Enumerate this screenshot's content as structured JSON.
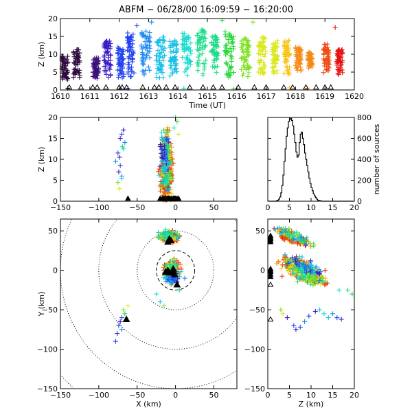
{
  "title": "ABFM − 06/28/00 16:09:59 − 16:20:00",
  "palette": {
    "rainbow": [
      "#2e0b3f",
      "#3d0f7a",
      "#3a1cc4",
      "#2142f2",
      "#1f8bf0",
      "#19bfe6",
      "#19dccd",
      "#1cdc8a",
      "#28d83a",
      "#7fe020",
      "#d9e81c",
      "#f7c419",
      "#f58a15",
      "#ee4a12",
      "#e51010"
    ],
    "station_color": "#000000",
    "ring_color": "#000000"
  },
  "chart_data": [
    {
      "id": "time-height",
      "type": "scatter",
      "xlabel": "Time (UT)",
      "ylabel": "Z (km)",
      "xlim": [
        1610,
        1620
      ],
      "ylim": [
        0,
        20
      ],
      "xticks": [
        "1610",
        "1611",
        "1612",
        "1613",
        "1614",
        "1615",
        "1616",
        "1617",
        "1618",
        "1619",
        "1620"
      ],
      "yticks": [
        "0",
        "5",
        "10",
        "15",
        "20"
      ],
      "marker": "plus",
      "color_by": "time",
      "flashes": [
        {
          "t": 1610.15,
          "w": 0.22,
          "zlo": 2.5,
          "zhi": 9.5
        },
        {
          "t": 1610.55,
          "w": 0.22,
          "zlo": 3.0,
          "zhi": 11.5
        },
        {
          "t": 1611.2,
          "w": 0.2,
          "zlo": 3.0,
          "zhi": 9.0
        },
        {
          "t": 1611.6,
          "w": 0.25,
          "zlo": 3.5,
          "zhi": 14.0
        },
        {
          "t": 1612.05,
          "w": 0.2,
          "zlo": 3.0,
          "zhi": 12.0
        },
        {
          "t": 1612.4,
          "w": 0.25,
          "zlo": 3.0,
          "zhi": 16.0
        },
        {
          "t": 1612.9,
          "w": 0.3,
          "zlo": 3.5,
          "zhi": 16.5
        },
        {
          "t": 1613.4,
          "w": 0.3,
          "zlo": 3.0,
          "zhi": 15.0
        },
        {
          "t": 1613.85,
          "w": 0.25,
          "zlo": 3.5,
          "zhi": 14.0
        },
        {
          "t": 1614.3,
          "w": 0.3,
          "zlo": 4.0,
          "zhi": 16.0
        },
        {
          "t": 1614.8,
          "w": 0.3,
          "zlo": 3.5,
          "zhi": 17.0
        },
        {
          "t": 1615.25,
          "w": 0.25,
          "zlo": 4.0,
          "zhi": 15.5
        },
        {
          "t": 1615.75,
          "w": 0.3,
          "zlo": 3.5,
          "zhi": 16.5
        },
        {
          "t": 1616.3,
          "w": 0.3,
          "zlo": 3.5,
          "zhi": 15.0
        },
        {
          "t": 1616.85,
          "w": 0.25,
          "zlo": 4.0,
          "zhi": 15.0
        },
        {
          "t": 1617.3,
          "w": 0.2,
          "zlo": 4.5,
          "zhi": 14.0
        },
        {
          "t": 1617.7,
          "w": 0.2,
          "zlo": 4.0,
          "zhi": 14.0
        },
        {
          "t": 1618.1,
          "w": 0.2,
          "zlo": 5.0,
          "zhi": 12.0
        },
        {
          "t": 1618.5,
          "w": 0.15,
          "zlo": 6.0,
          "zhi": 10.5
        },
        {
          "t": 1619.05,
          "w": 0.2,
          "zlo": 4.5,
          "zhi": 13.0
        },
        {
          "t": 1619.5,
          "w": 0.2,
          "zlo": 4.0,
          "zhi": 11.5
        }
      ],
      "scattered_points": [
        {
          "t": 1610.25,
          "z": 0.5
        },
        {
          "t": 1612.6,
          "z": 18.0
        },
        {
          "t": 1613.1,
          "z": 19.0
        },
        {
          "t": 1615.5,
          "z": 19.5
        },
        {
          "t": 1616.55,
          "z": 19.0
        },
        {
          "t": 1619.35,
          "z": 17.5
        },
        {
          "t": 1617.8,
          "z": 0.6
        },
        {
          "t": 1612.3,
          "z": 0.4
        },
        {
          "t": 1614.2,
          "z": 0.5
        },
        {
          "t": 1615.9,
          "z": 0.3
        },
        {
          "t": 1618.4,
          "z": 0.5
        }
      ],
      "ground_triangles_t": [
        1610.3,
        1610.7,
        1611.1,
        1611.25,
        1611.55,
        1612.0,
        1612.1,
        1612.25,
        1612.8,
        1613.2,
        1613.35,
        1613.6,
        1613.9,
        1614.4,
        1614.85,
        1615.2,
        1615.5,
        1616.05,
        1616.6,
        1617.0,
        1617.6,
        1617.9,
        1618.35,
        1618.7,
        1619.0,
        1619.2
      ]
    },
    {
      "id": "xz-projection",
      "type": "scatter",
      "xlabel": "",
      "ylabel": "Z (km)",
      "xlim": [
        -150,
        80
      ],
      "ylim": [
        0,
        20
      ],
      "xticks": [
        "−150",
        "−100",
        "−50",
        "0",
        "50"
      ],
      "yticks": [
        "0",
        "5",
        "10",
        "15",
        "20"
      ],
      "marker": "plus",
      "sources": [
        {
          "x": -12,
          "z": 8.0,
          "sx": 9,
          "sz": 4.5,
          "n": 500,
          "c": [
            11,
            14
          ]
        },
        {
          "x": -12,
          "z": 9.0,
          "sx": 10,
          "sz": 5.0,
          "n": 140,
          "c": [
            6,
            10
          ]
        },
        {
          "x": -14,
          "z": 10.0,
          "sx": 8,
          "sz": 4.5,
          "n": 60,
          "c": [
            2,
            5
          ]
        }
      ],
      "side_points": [
        {
          "x": -68,
          "z": 17.0,
          "c": 2
        },
        {
          "x": -70,
          "z": 16.0,
          "c": 3
        },
        {
          "x": -72,
          "z": 15.0,
          "c": 2
        },
        {
          "x": -66,
          "z": 14.0,
          "c": 4
        },
        {
          "x": -68,
          "z": 12.5,
          "c": 6
        },
        {
          "x": -75,
          "z": 11.5,
          "c": 3
        },
        {
          "x": -73,
          "z": 10.5,
          "c": 2
        },
        {
          "x": -78,
          "z": 9.5,
          "c": 4
        },
        {
          "x": -72,
          "z": 8.5,
          "c": 3
        },
        {
          "x": -74,
          "z": 7.0,
          "c": 2
        },
        {
          "x": -70,
          "z": 6.0,
          "c": 4
        },
        {
          "x": -75,
          "z": 4.5,
          "c": 9
        },
        {
          "x": -73,
          "z": 3.0,
          "c": 10
        },
        {
          "x": -70,
          "z": 5.5,
          "c": 5
        },
        {
          "x": -69,
          "z": 13.0,
          "c": 7
        },
        {
          "x": 2,
          "z": 19.0,
          "c": 8
        },
        {
          "x": 0,
          "z": 20.0,
          "c": 7
        },
        {
          "x": -2,
          "z": 17.5,
          "c": 6
        },
        {
          "x": 4,
          "z": 16.0,
          "c": 10
        },
        {
          "x": -20,
          "z": 13.0,
          "c": 1
        }
      ],
      "ground_triangles_x": [
        -62,
        -20,
        -17,
        -15,
        -13,
        -11,
        -10,
        -9,
        -8,
        -7,
        -5,
        -3,
        -2,
        -1,
        0,
        2,
        4
      ]
    },
    {
      "id": "height-histogram",
      "type": "bar",
      "xlabel": "",
      "ylabel": "number of sources",
      "xlim": [
        0,
        20
      ],
      "ylim": [
        0,
        800
      ],
      "xticks": [
        "0",
        "5",
        "10",
        "15",
        "20"
      ],
      "yticks": [
        "0",
        "200",
        "400",
        "600",
        "800"
      ],
      "bin_width_km": 0.25,
      "bin_starts_km": [
        0,
        0.25,
        0.5,
        0.75,
        1,
        1.25,
        1.5,
        1.75,
        2,
        2.25,
        2.5,
        2.75,
        3,
        3.25,
        3.5,
        3.75,
        4,
        4.25,
        4.5,
        4.75,
        5,
        5.25,
        5.5,
        5.75,
        6,
        6.25,
        6.5,
        6.75,
        7,
        7.25,
        7.5,
        7.75,
        8,
        8.25,
        8.5,
        8.75,
        9,
        9.25,
        9.5,
        9.75,
        10,
        10.25,
        10.5,
        10.75,
        11,
        11.25,
        11.5,
        11.75,
        12,
        12.25,
        12.5,
        12.75,
        13,
        13.25,
        13.5,
        13.75,
        14,
        14.25,
        14.5,
        14.75,
        15,
        15.25,
        15.5,
        15.75,
        16,
        16.25,
        16.5,
        16.75,
        17,
        17.25,
        17.5,
        17.75,
        18,
        18.25,
        18.5,
        18.75,
        19,
        19.25,
        19.5,
        19.75
      ],
      "counts": [
        0,
        0,
        0,
        0,
        0,
        0,
        0,
        0,
        5,
        10,
        20,
        40,
        80,
        150,
        250,
        380,
        500,
        620,
        700,
        760,
        780,
        790,
        770,
        720,
        640,
        560,
        470,
        420,
        440,
        560,
        640,
        660,
        600,
        540,
        460,
        400,
        340,
        280,
        220,
        170,
        130,
        100,
        70,
        50,
        35,
        20,
        10,
        6,
        4,
        2,
        0,
        0,
        0,
        0,
        0,
        0,
        0,
        0,
        0,
        0,
        0,
        0,
        0,
        0,
        0,
        0,
        0,
        0,
        0,
        0,
        0,
        0,
        0,
        0,
        0,
        0,
        0,
        0,
        0,
        0
      ]
    },
    {
      "id": "plan-view",
      "type": "scatter",
      "xlabel": "X (km)",
      "ylabel": "Y (km)",
      "xlim": [
        -150,
        80
      ],
      "ylim": [
        -150,
        65
      ],
      "xticks": [
        "−150",
        "−100",
        "−50",
        "0",
        "50"
      ],
      "yticks": [
        "−150",
        "−100",
        "−50",
        "0",
        "50"
      ],
      "marker": "plus",
      "range_rings_km": [
        25,
        50,
        100,
        150,
        200
      ],
      "dashed_ring_km": 25,
      "sources": [
        {
          "x": -8,
          "y": 42,
          "sx": 10,
          "sy": 5,
          "n": 230,
          "c": [
            11,
            14
          ]
        },
        {
          "x": -10,
          "y": 44,
          "sx": 12,
          "sy": 5,
          "n": 90,
          "c": [
            4,
            10
          ]
        },
        {
          "x": -5,
          "y": 0,
          "sx": 7,
          "sy": 9,
          "n": 420,
          "c": [
            11,
            14
          ]
        },
        {
          "x": -6,
          "y": -2,
          "sx": 8,
          "sy": 10,
          "n": 160,
          "c": [
            5,
            10
          ]
        },
        {
          "x": -4,
          "y": -10,
          "sx": 6,
          "sy": 5,
          "n": 60,
          "c": [
            2,
            5
          ]
        }
      ],
      "side_points": [
        {
          "x": -70,
          "y": -60,
          "c": 3
        },
        {
          "x": -72,
          "y": -65,
          "c": 2
        },
        {
          "x": -74,
          "y": -70,
          "c": 3
        },
        {
          "x": -70,
          "y": -75,
          "c": 4
        },
        {
          "x": -76,
          "y": -80,
          "c": 2
        },
        {
          "x": -78,
          "y": -90,
          "c": 3
        },
        {
          "x": -66,
          "y": -55,
          "c": 8
        },
        {
          "x": -68,
          "y": -50,
          "c": 9
        },
        {
          "x": -62,
          "y": -45,
          "c": 10
        },
        {
          "x": -25,
          "y": -30,
          "c": 6
        },
        {
          "x": -15,
          "y": -45,
          "c": 9
        },
        {
          "x": -20,
          "y": -40,
          "c": 5
        },
        {
          "x": 5,
          "y": -25,
          "c": 7
        },
        {
          "x": 12,
          "y": -10,
          "c": 4
        }
      ],
      "station_triangles": [
        {
          "x": -10,
          "y": 36
        },
        {
          "x": -8,
          "y": 40
        },
        {
          "x": -6,
          "y": 38
        },
        {
          "x": -13,
          "y": -2
        },
        {
          "x": -10,
          "y": 0
        },
        {
          "x": -8,
          "y": -3
        },
        {
          "x": -5,
          "y": -2
        },
        {
          "x": -3,
          "y": 2
        },
        {
          "x": -1,
          "y": -5
        },
        {
          "x": 2,
          "y": -18
        },
        {
          "x": -64,
          "y": -62
        }
      ]
    },
    {
      "id": "zy-projection",
      "type": "scatter",
      "xlabel": "Z (km)",
      "ylabel": "",
      "xlim": [
        0,
        20
      ],
      "ylim": [
        -150,
        65
      ],
      "xticks": [
        "0",
        "5",
        "10",
        "15",
        "20"
      ],
      "yticks": [
        "−150",
        "−100",
        "−50",
        "0",
        "50"
      ],
      "marker": "plus",
      "sources": [
        {
          "z": 5.5,
          "y": 42,
          "sz": 2.5,
          "sy": 5,
          "n": 220,
          "c": [
            11,
            14
          ]
        },
        {
          "z": 6.0,
          "y": 44,
          "sz": 3.0,
          "sy": 5,
          "n": 90,
          "c": [
            4,
            10
          ]
        },
        {
          "z": 8.0,
          "y": 0,
          "sz": 3.5,
          "sy": 9,
          "n": 420,
          "c": [
            11,
            14
          ]
        },
        {
          "z": 8.5,
          "y": -2,
          "sz": 3.5,
          "sy": 10,
          "n": 170,
          "c": [
            5,
            10
          ]
        },
        {
          "z": 9.0,
          "y": 4,
          "sz": 3.0,
          "sy": 8,
          "n": 50,
          "c": [
            2,
            5
          ]
        }
      ],
      "side_points": [
        {
          "z": 4.5,
          "y": -60,
          "c": 2
        },
        {
          "z": 6.0,
          "y": -70,
          "c": 3
        },
        {
          "z": 6.5,
          "y": -75,
          "c": 2
        },
        {
          "z": 7.5,
          "y": -72,
          "c": 3
        },
        {
          "z": 8.5,
          "y": -65,
          "c": 4
        },
        {
          "z": 9.5,
          "y": -58,
          "c": 3
        },
        {
          "z": 11.0,
          "y": -52,
          "c": 2
        },
        {
          "z": 12.0,
          "y": -50,
          "c": 5
        },
        {
          "z": 13.0,
          "y": -55,
          "c": 6
        },
        {
          "z": 14.0,
          "y": -60,
          "c": 5
        },
        {
          "z": 15.0,
          "y": -55,
          "c": 4
        },
        {
          "z": 16.0,
          "y": -60,
          "c": 3
        },
        {
          "z": 17.0,
          "y": -62,
          "c": 2
        },
        {
          "z": 3.0,
          "y": -50,
          "c": 9
        },
        {
          "z": 3.5,
          "y": -55,
          "c": 10
        },
        {
          "z": 18.5,
          "y": -25,
          "c": 7
        },
        {
          "z": 19.5,
          "y": -30,
          "c": 8
        },
        {
          "z": 16.5,
          "y": -25,
          "c": 6
        }
      ],
      "ground_triangles_y": [
        36,
        38,
        40,
        42,
        44,
        -2,
        0,
        2,
        -5,
        -8,
        -18,
        -62
      ]
    }
  ]
}
